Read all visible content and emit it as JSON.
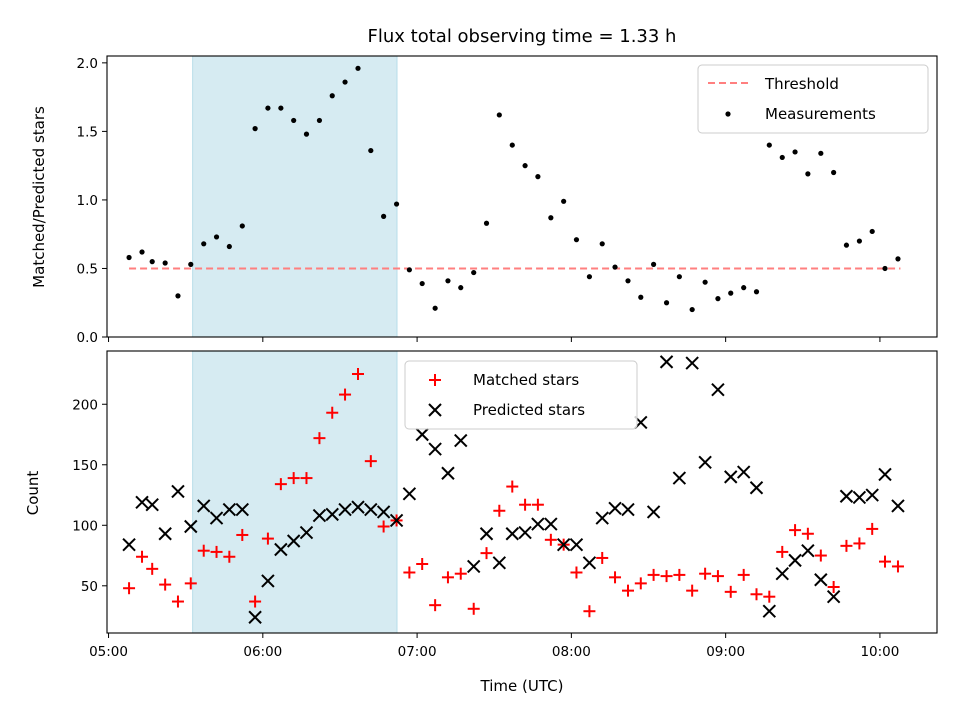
{
  "chart_data": [
    {
      "type": "scatter",
      "title": "Flux total observing time = 1.33 h",
      "xlabel": "",
      "ylabel": "Matched/Predicted stars",
      "ylim": [
        0.0,
        2.05
      ],
      "yticks": [
        "0.0",
        "0.5",
        "1.0",
        "1.5",
        "2.0"
      ],
      "ytick_values": [
        0.0,
        0.5,
        1.0,
        1.5,
        2.0
      ],
      "xlim_hours": [
        4.99,
        10.37
      ],
      "shaded_span_hours": [
        5.545,
        6.87
      ],
      "legend": {
        "placement": "upper right",
        "entries": [
          "Threshold",
          "Measurements"
        ]
      },
      "series": [
        {
          "name": "Threshold",
          "kind": "line",
          "style": "dashed",
          "color": "#ff7f7f",
          "x": [
            5.133,
            10.133
          ],
          "y": [
            0.5,
            0.5
          ]
        },
        {
          "name": "Measurements",
          "kind": "scatter",
          "color": "#000000",
          "x": [
            5.133,
            5.217,
            5.283,
            5.367,
            5.45,
            5.533,
            5.617,
            5.7,
            5.783,
            5.867,
            5.95,
            6.033,
            6.117,
            6.2,
            6.283,
            6.367,
            6.45,
            6.533,
            6.617,
            6.7,
            6.783,
            6.867,
            6.95,
            7.033,
            7.117,
            7.2,
            7.283,
            7.367,
            7.45,
            7.533,
            7.617,
            7.7,
            7.783,
            7.867,
            7.95,
            8.033,
            8.117,
            8.2,
            8.283,
            8.367,
            8.45,
            8.533,
            8.617,
            8.7,
            8.783,
            8.867,
            8.95,
            9.033,
            9.117,
            9.2,
            9.283,
            9.367,
            9.45,
            9.533,
            9.617,
            9.7,
            9.783,
            9.867,
            9.95,
            10.033,
            10.117
          ],
          "y": [
            0.58,
            0.62,
            0.55,
            0.54,
            0.3,
            0.53,
            0.68,
            0.73,
            0.66,
            0.81,
            1.52,
            1.67,
            1.67,
            1.58,
            1.48,
            1.58,
            1.76,
            1.86,
            1.96,
            1.36,
            0.88,
            0.97,
            0.49,
            0.39,
            0.21,
            0.41,
            0.36,
            0.47,
            0.83,
            1.62,
            1.4,
            1.25,
            1.17,
            0.87,
            0.99,
            0.71,
            0.44,
            0.68,
            0.51,
            0.41,
            0.29,
            0.53,
            0.25,
            0.44,
            0.2,
            0.4,
            0.28,
            0.32,
            0.36,
            0.33,
            1.4,
            1.31,
            1.35,
            1.19,
            1.34,
            1.2,
            0.67,
            0.7,
            0.77,
            0.5,
            0.57
          ]
        }
      ]
    },
    {
      "type": "scatter",
      "title": "",
      "xlabel": "Time (UTC)",
      "ylabel": "Count",
      "ylim": [
        11,
        244
      ],
      "yticks": [
        "50",
        "100",
        "150",
        "200"
      ],
      "ytick_values": [
        50,
        100,
        150,
        200
      ],
      "xticks": [
        "05:00",
        "06:00",
        "07:00",
        "08:00",
        "09:00",
        "10:00"
      ],
      "xtick_values_hours": [
        5,
        6,
        7,
        8,
        9,
        10
      ],
      "xlim_hours": [
        4.99,
        10.37
      ],
      "shaded_span_hours": [
        5.545,
        6.87
      ],
      "legend": {
        "placement": "upper center",
        "entries": [
          "Matched stars",
          "Predicted stars"
        ]
      },
      "series": [
        {
          "name": "Matched stars",
          "marker": "plus",
          "color": "#ff0000",
          "x": [
            5.133,
            5.217,
            5.283,
            5.367,
            5.45,
            5.533,
            5.617,
            5.7,
            5.783,
            5.867,
            5.95,
            6.033,
            6.117,
            6.2,
            6.283,
            6.367,
            6.45,
            6.533,
            6.617,
            6.7,
            6.783,
            6.867,
            6.95,
            7.033,
            7.117,
            7.2,
            7.283,
            7.367,
            7.45,
            7.533,
            7.617,
            7.7,
            7.783,
            7.867,
            7.95,
            8.033,
            8.117,
            8.2,
            8.283,
            8.367,
            8.45,
            8.533,
            8.617,
            8.7,
            8.783,
            8.867,
            8.95,
            9.033,
            9.117,
            9.2,
            9.283,
            9.367,
            9.45,
            9.533,
            9.617,
            9.7,
            9.783,
            9.867,
            9.95,
            10.033,
            10.117
          ],
          "y": [
            48,
            74,
            64,
            51,
            37,
            52,
            79,
            78,
            74,
            92,
            37,
            89,
            134,
            139,
            139,
            172,
            193,
            208,
            225,
            153,
            99,
            104,
            61,
            68,
            34,
            57,
            60,
            31,
            77,
            112,
            132,
            117,
            117,
            88,
            84,
            61,
            29,
            73,
            57,
            46,
            52,
            59,
            58,
            59,
            46,
            60,
            58,
            45,
            59,
            43,
            41,
            78,
            96,
            93,
            75,
            49,
            83,
            85,
            97,
            70,
            66
          ]
        },
        {
          "name": "Predicted stars",
          "marker": "x",
          "color": "#000000",
          "x": [
            5.133,
            5.217,
            5.283,
            5.367,
            5.45,
            5.533,
            5.617,
            5.7,
            5.783,
            5.867,
            5.95,
            6.033,
            6.117,
            6.2,
            6.283,
            6.367,
            6.45,
            6.533,
            6.617,
            6.7,
            6.783,
            6.867,
            6.95,
            7.033,
            7.117,
            7.2,
            7.283,
            7.367,
            7.45,
            7.533,
            7.617,
            7.7,
            7.783,
            7.867,
            7.95,
            8.033,
            8.117,
            8.2,
            8.283,
            8.367,
            8.45,
            8.533,
            8.617,
            8.7,
            8.783,
            8.867,
            8.95,
            9.033,
            9.117,
            9.2,
            9.283,
            9.367,
            9.45,
            9.533,
            9.617,
            9.7,
            9.783,
            9.867,
            9.95,
            10.033,
            10.117
          ],
          "y": [
            84,
            119,
            117,
            93,
            128,
            99,
            116,
            106,
            113,
            113,
            24,
            54,
            80,
            87,
            94,
            108,
            109,
            113,
            115,
            113,
            111,
            104,
            126,
            175,
            163,
            143,
            170,
            66,
            93,
            69,
            93,
            94,
            101,
            101,
            84,
            84,
            69,
            106,
            114,
            113,
            185,
            111,
            235,
            139,
            234,
            152,
            212,
            140,
            144,
            131,
            29,
            60,
            71,
            79,
            55,
            41,
            124,
            123,
            125,
            142,
            116
          ]
        }
      ]
    }
  ]
}
